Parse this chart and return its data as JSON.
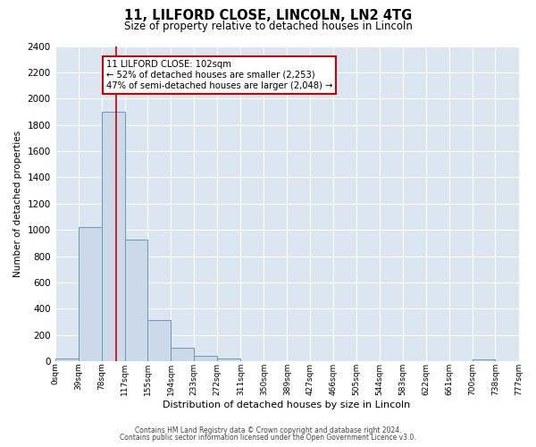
{
  "title": "11, LILFORD CLOSE, LINCOLN, LN2 4TG",
  "subtitle": "Size of property relative to detached houses in Lincoln",
  "xlabel": "Distribution of detached houses by size in Lincoln",
  "ylabel": "Number of detached properties",
  "bin_edges": [
    0,
    39,
    78,
    117,
    155,
    194,
    233,
    272,
    311,
    350,
    389,
    427,
    466,
    505,
    544,
    583,
    622,
    661,
    700,
    738,
    777
  ],
  "bin_labels": [
    "0sqm",
    "39sqm",
    "78sqm",
    "117sqm",
    "155sqm",
    "194sqm",
    "233sqm",
    "272sqm",
    "311sqm",
    "350sqm",
    "389sqm",
    "427sqm",
    "466sqm",
    "505sqm",
    "544sqm",
    "583sqm",
    "622sqm",
    "661sqm",
    "700sqm",
    "738sqm",
    "777sqm"
  ],
  "bar_heights": [
    20,
    1020,
    1900,
    925,
    315,
    100,
    45,
    20,
    0,
    0,
    0,
    0,
    0,
    0,
    0,
    0,
    0,
    0,
    15,
    0
  ],
  "bar_color": "#ccd9e8",
  "bar_edge_color": "#6699bb",
  "ylim": [
    0,
    2400
  ],
  "yticks": [
    0,
    200,
    400,
    600,
    800,
    1000,
    1200,
    1400,
    1600,
    1800,
    2000,
    2200,
    2400
  ],
  "property_line_x": 102,
  "property_line_color": "#cc0000",
  "annotation_line1": "11 LILFORD CLOSE: 102sqm",
  "annotation_line2": "← 52% of detached houses are smaller (2,253)",
  "annotation_line3": "47% of semi-detached houses are larger (2,048) →",
  "plot_bg_color": "#dce6f0",
  "footer_line1": "Contains HM Land Registry data © Crown copyright and database right 2024.",
  "footer_line2": "Contains public sector information licensed under the Open Government Licence v3.0."
}
